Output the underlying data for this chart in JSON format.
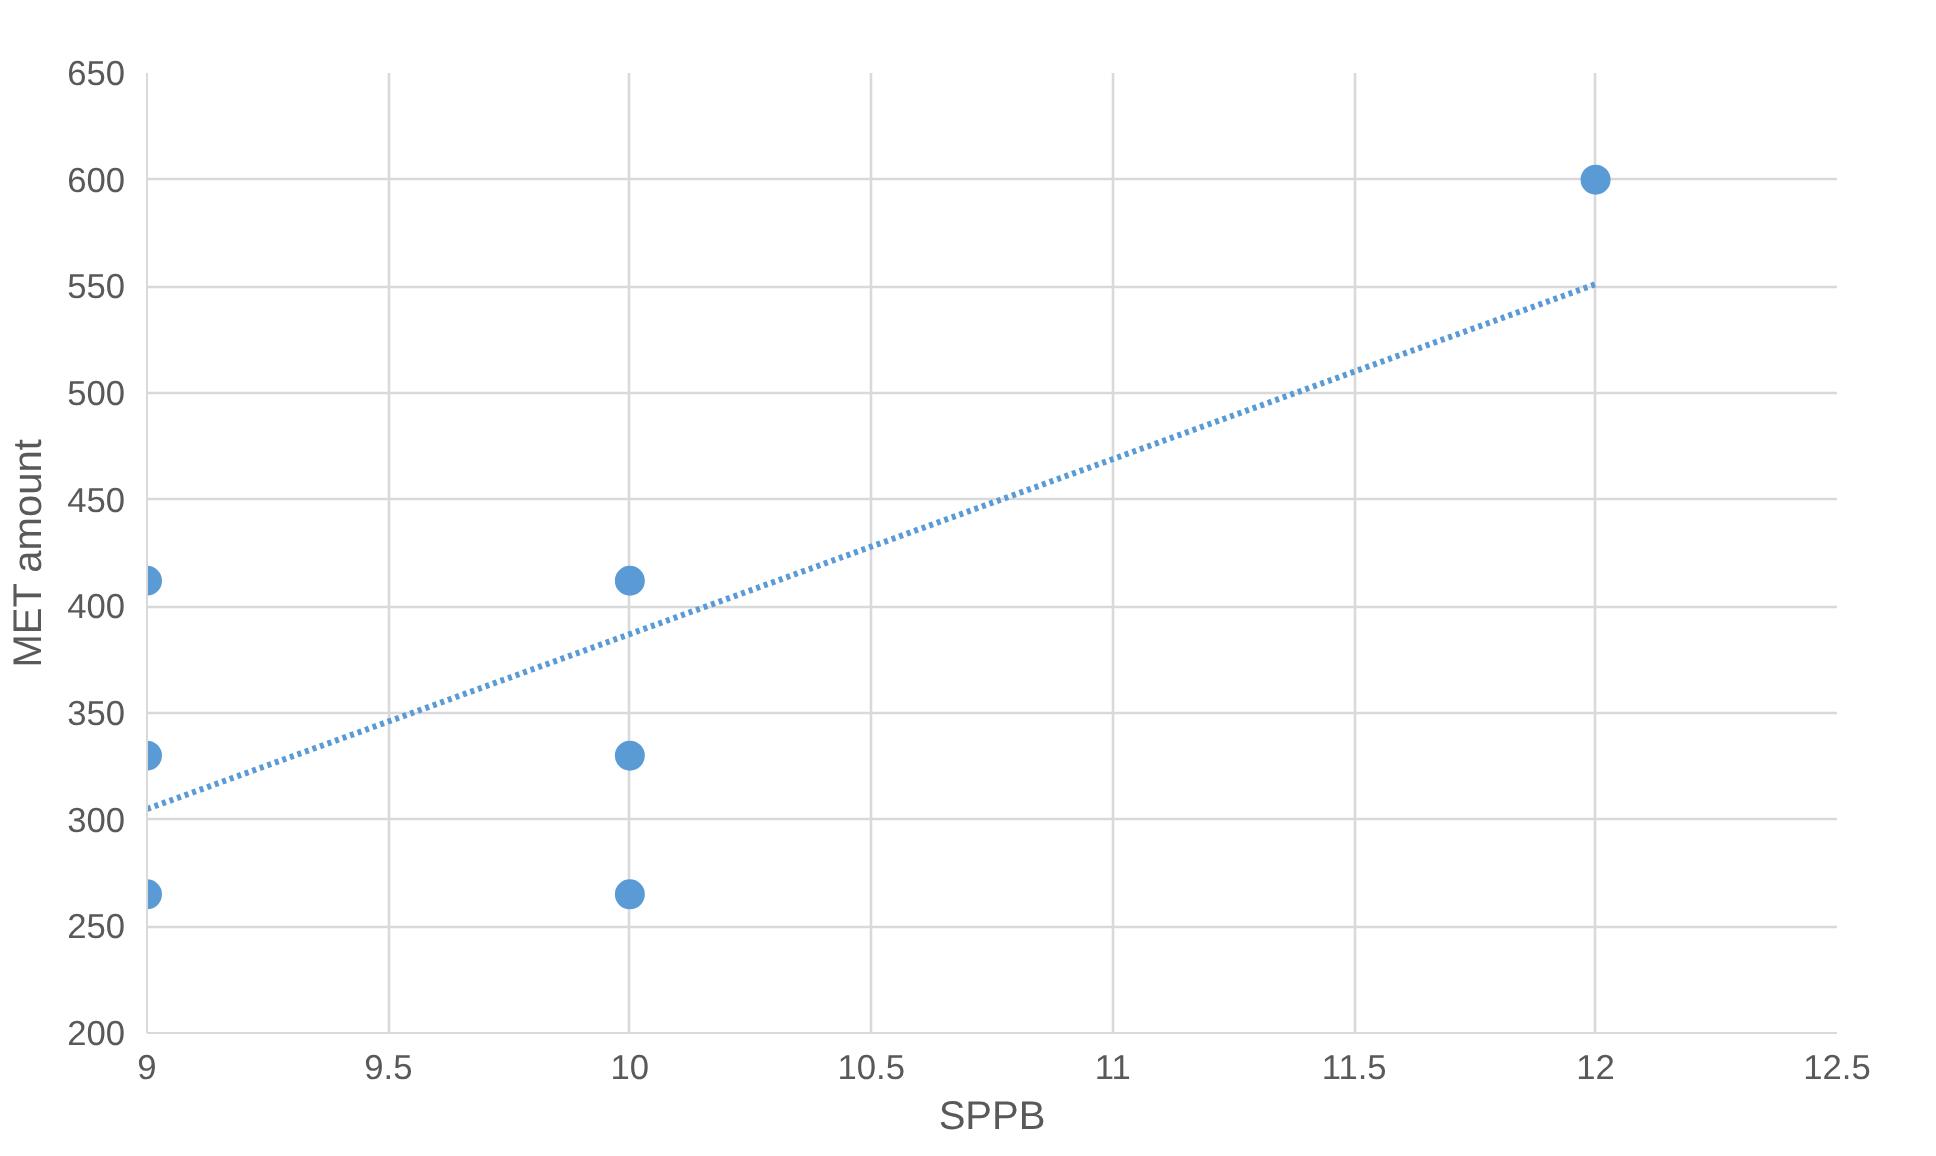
{
  "chart_data": {
    "type": "scatter",
    "xlabel": "SPPB",
    "ylabel": "MET amount",
    "xlim": [
      9,
      12.5
    ],
    "xticks": [
      9,
      9.5,
      10,
      10.5,
      11,
      11.5,
      12,
      12.5
    ],
    "ylim": [
      200,
      650
    ],
    "yticks": [
      200,
      250,
      300,
      350,
      400,
      450,
      500,
      550,
      600,
      650
    ],
    "grid": true,
    "marker": "circle",
    "series": [
      {
        "color": "#5b9bd5",
        "x": [
          9,
          9,
          9,
          10,
          10,
          10,
          12
        ],
        "values": [
          412,
          330,
          265,
          412,
          330,
          265,
          600
        ]
      },
      {
        "type": "line",
        "color": "#5b9bd5",
        "line_style": "dotted",
        "marker": "none",
        "x": [
          9,
          12
        ],
        "values": [
          305,
          551
        ]
      }
    ]
  }
}
